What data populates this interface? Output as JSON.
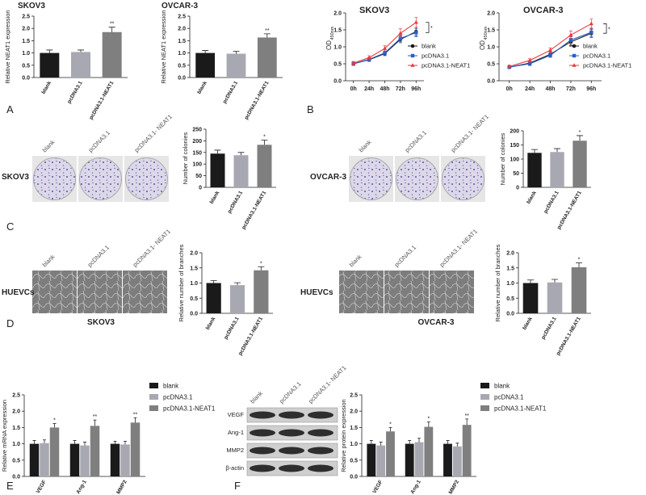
{
  "panels": [
    "A",
    "B",
    "C",
    "D",
    "E",
    "F"
  ],
  "colony_assays": [
    {
      "cell_line": "SKOV3",
      "columns": [
        "blank",
        "pcDNA3.1",
        "pcDNA3.1- NEAT1"
      ]
    },
    {
      "cell_line": "OVCAR-3",
      "columns": [
        "blank",
        "pcDNA3.1",
        "pcDNA3.1- NEAT1"
      ]
    }
  ],
  "tube_formation": [
    {
      "cell_type": "HUEVCs",
      "columns": [
        "blank",
        "pcDNA3.1",
        "pcDNA3.1- NEAT1"
      ],
      "caption": "SKOV3"
    },
    {
      "cell_type": "HUEVCs",
      "columns": [
        "blank",
        "pcDNA3.1",
        "pcDNA3.1- NEAT1"
      ],
      "caption": "OVCAR-3"
    }
  ],
  "western_blot": {
    "columns": [
      "blank",
      "pcDNA3.1",
      "pcDNA3.1- NEAT1"
    ],
    "rows": [
      "VEGF",
      "Ang-1",
      "MMP2",
      "β-actin"
    ]
  },
  "chart_data": [
    {
      "type": "bar",
      "title": "SKOV3",
      "ylabel": "Relative NEAT1 expression",
      "categories": [
        "blank",
        "pcDNA3.1",
        "pcDNA3.1-NEAT1"
      ],
      "values": [
        1.0,
        1.04,
        1.85
      ],
      "errors": [
        0.12,
        0.08,
        0.2
      ],
      "colors": [
        "#1a1a1a",
        "#a8a8b2",
        "#7f7f7f"
      ],
      "annotations": [
        null,
        null,
        "**"
      ],
      "ylim": [
        0,
        2.5
      ],
      "yticks": [
        {
          "value": 0,
          "label": "0.0"
        },
        0.5,
        {
          "value": 1,
          "label": "1.0"
        },
        1.5,
        {
          "value": 2,
          "label": "2.0"
        },
        2.5
      ]
    },
    {
      "type": "bar",
      "title": "OVCAR-3",
      "ylabel": "Relative NEAT1 expression",
      "categories": [
        "blank",
        "pcDNA3.1",
        "pcDNA3.1-NEAT1"
      ],
      "values": [
        1.0,
        0.97,
        1.63
      ],
      "errors": [
        0.1,
        0.1,
        0.15
      ],
      "colors": [
        "#1a1a1a",
        "#a8a8b2",
        "#7f7f7f"
      ],
      "annotations": [
        null,
        null,
        "**"
      ],
      "ylim": [
        0,
        2.5
      ],
      "yticks": [
        {
          "value": 0,
          "label": "0.0"
        },
        0.5,
        {
          "value": 1,
          "label": "1.0"
        },
        1.5,
        {
          "value": 2,
          "label": "2.0"
        },
        2.5
      ]
    },
    {
      "type": "line",
      "title": "SKOV3",
      "ylabel": "OD",
      "ylabel_sub": "450nm",
      "categories": [
        "0h",
        "24h",
        "48h",
        "72h",
        "96h"
      ],
      "series": [
        {
          "name": "blank",
          "color": "#1a1a1a",
          "values": [
            0.5,
            0.62,
            0.8,
            1.22,
            1.45
          ],
          "errors": [
            0.05,
            0.05,
            0.06,
            0.1,
            0.12
          ]
        },
        {
          "name": "pcDNA3.1",
          "color": "#2a5fc9",
          "values": [
            0.5,
            0.63,
            0.82,
            1.25,
            1.42
          ],
          "errors": [
            0.05,
            0.05,
            0.06,
            0.1,
            0.12
          ]
        },
        {
          "name": "pcDNA3.1-NEAT1",
          "color": "#e8383d",
          "values": [
            0.52,
            0.68,
            0.95,
            1.4,
            1.72
          ],
          "errors": [
            0.05,
            0.06,
            0.08,
            0.13,
            0.15
          ]
        }
      ],
      "annotation": "*",
      "ylim": [
        0,
        2
      ],
      "yticks": [
        {
          "value": 0,
          "label": "0.0"
        },
        0.5,
        {
          "value": 1,
          "label": "1.0"
        },
        1.5,
        {
          "value": 2,
          "label": "2.0"
        }
      ]
    },
    {
      "type": "line",
      "title": "OVCAR-3",
      "ylabel": "OD",
      "ylabel_sub": "450nm",
      "categories": [
        "0h",
        "24h",
        "48h",
        "72h",
        "96h"
      ],
      "series": [
        {
          "name": "blank",
          "color": "#1a1a1a",
          "values": [
            0.4,
            0.52,
            0.78,
            1.15,
            1.4
          ],
          "errors": [
            0.04,
            0.05,
            0.06,
            0.1,
            0.12
          ]
        },
        {
          "name": "pcDNA3.1",
          "color": "#2a5fc9",
          "values": [
            0.4,
            0.5,
            0.75,
            1.2,
            1.43
          ],
          "errors": [
            0.04,
            0.05,
            0.06,
            0.1,
            0.12
          ]
        },
        {
          "name": "pcDNA3.1-NEAT1",
          "color": "#e8383d",
          "values": [
            0.42,
            0.6,
            0.9,
            1.35,
            1.68
          ],
          "errors": [
            0.04,
            0.05,
            0.07,
            0.12,
            0.14
          ]
        }
      ],
      "annotation": "*",
      "ylim": [
        0,
        2
      ],
      "yticks": [
        {
          "value": 0,
          "label": "0.0"
        },
        0.5,
        {
          "value": 1,
          "label": "1.0"
        },
        1.5,
        {
          "value": 2,
          "label": "2.0"
        }
      ]
    },
    {
      "type": "bar",
      "ylabel": "Number of colonies",
      "categories": [
        "blank",
        "pcDNA3.1",
        "pcDNA3.1-NEAT1"
      ],
      "values": [
        145,
        138,
        183
      ],
      "errors": [
        15,
        12,
        20
      ],
      "colors": [
        "#1a1a1a",
        "#a8a8b2",
        "#7f7f7f"
      ],
      "annotations": [
        null,
        null,
        "*"
      ],
      "ylim": [
        0,
        250
      ],
      "yticks": [
        0,
        50,
        100,
        150,
        200,
        250
      ]
    },
    {
      "type": "bar",
      "ylabel": "Number of colonies",
      "categories": [
        "blank",
        "pcDNA3.1",
        "pcDNA3.1-NEAT1"
      ],
      "values": [
        122,
        125,
        165
      ],
      "errors": [
        12,
        12,
        18
      ],
      "colors": [
        "#1a1a1a",
        "#a8a8b2",
        "#7f7f7f"
      ],
      "annotations": [
        null,
        null,
        "*"
      ],
      "ylim": [
        0,
        200
      ],
      "yticks": [
        0,
        50,
        100,
        150,
        200
      ]
    },
    {
      "type": "bar",
      "ylabel": "Relative number of branches",
      "categories": [
        "blank",
        "pcDNA3.1",
        "pcDNA3.1-NEAT1"
      ],
      "values": [
        1.0,
        0.93,
        1.42
      ],
      "errors": [
        0.08,
        0.08,
        0.12
      ],
      "colors": [
        "#1a1a1a",
        "#a8a8b2",
        "#7f7f7f"
      ],
      "annotations": [
        null,
        null,
        "*"
      ],
      "ylim": [
        0,
        2
      ],
      "yticks": [
        {
          "value": 0,
          "label": "0.0"
        },
        0.5,
        {
          "value": 1,
          "label": "1.0"
        },
        1.5,
        {
          "value": 2,
          "label": "2.0"
        }
      ]
    },
    {
      "type": "bar",
      "ylabel": "Relative number of branches",
      "categories": [
        "blank",
        "pcDNA3.1",
        "pcDNA3.1-NEAT1"
      ],
      "values": [
        1.0,
        1.02,
        1.52
      ],
      "errors": [
        0.1,
        0.1,
        0.15
      ],
      "colors": [
        "#1a1a1a",
        "#a8a8b2",
        "#7f7f7f"
      ],
      "annotations": [
        null,
        null,
        "*"
      ],
      "ylim": [
        0,
        2
      ],
      "yticks": [
        {
          "value": 0,
          "label": "0.0"
        },
        0.5,
        {
          "value": 1,
          "label": "1.0"
        },
        1.5,
        {
          "value": 2,
          "label": "2.0"
        }
      ]
    },
    {
      "type": "bar",
      "ylabel": "Relative mRNA expression",
      "categories": [
        "VEGF",
        "Ang-1",
        "MMP2"
      ],
      "series": [
        {
          "name": "blank",
          "color": "#1a1a1a",
          "values": [
            1.0,
            1.0,
            1.0
          ],
          "errors": [
            0.1,
            0.1,
            0.08
          ]
        },
        {
          "name": "pcDNA3.1",
          "color": "#a8a8b2",
          "values": [
            1.02,
            0.95,
            0.98
          ],
          "errors": [
            0.1,
            0.1,
            0.1
          ]
        },
        {
          "name": "pcDNA3.1-NEAT1",
          "color": "#7f7f7f",
          "values": [
            1.5,
            1.55,
            1.65
          ],
          "errors": [
            0.12,
            0.18,
            0.15
          ]
        }
      ],
      "annotations": [
        "*",
        "**",
        "**"
      ],
      "ylim": [
        0,
        2.5
      ],
      "yticks": [
        {
          "value": 0,
          "label": "0.0"
        },
        0.5,
        {
          "value": 1,
          "label": "1.0"
        },
        1.5,
        {
          "value": 2,
          "label": "2.0"
        },
        2.5
      ]
    },
    {
      "type": "bar",
      "ylabel": "Relative protein expression",
      "categories": [
        "VEGF",
        "Ang-1",
        "MMP2"
      ],
      "series": [
        {
          "name": "blank",
          "color": "#1a1a1a",
          "values": [
            1.0,
            1.0,
            1.0
          ],
          "errors": [
            0.1,
            0.1,
            0.1
          ]
        },
        {
          "name": "pcDNA3.1",
          "color": "#a8a8b2",
          "values": [
            0.95,
            1.05,
            0.92
          ],
          "errors": [
            0.1,
            0.12,
            0.1
          ]
        },
        {
          "name": "pcDNA3.1-NEAT1",
          "color": "#7f7f7f",
          "values": [
            1.38,
            1.52,
            1.58
          ],
          "errors": [
            0.12,
            0.15,
            0.18
          ]
        }
      ],
      "annotations": [
        "*",
        "*",
        "**"
      ],
      "ylim": [
        0,
        2.5
      ],
      "yticks": [
        {
          "value": 0,
          "label": "0.0"
        },
        0.5,
        {
          "value": 1,
          "label": "1.0"
        },
        1.5,
        {
          "value": 2,
          "label": "2.0"
        },
        2.5
      ]
    }
  ]
}
